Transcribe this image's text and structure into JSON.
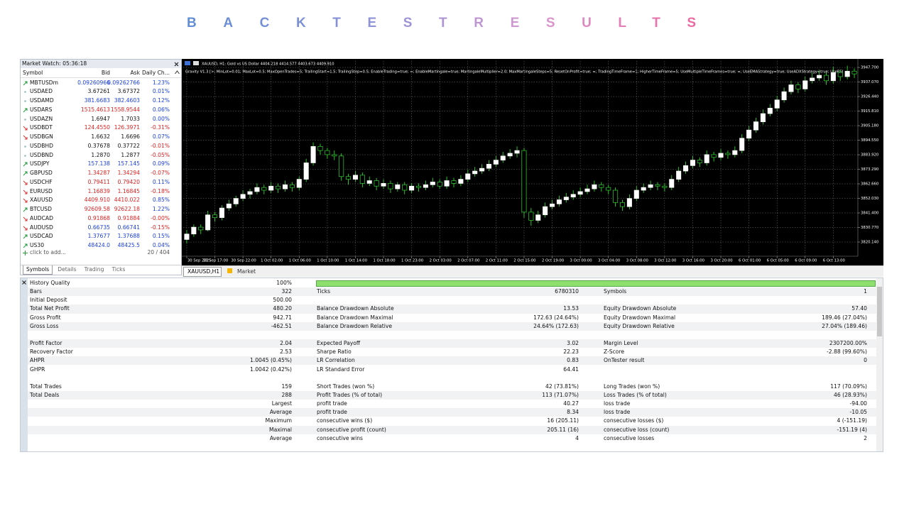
{
  "title": "BACKTESTRESULTS",
  "market_watch": {
    "header": "Market Watch: 05:36:18",
    "columns": [
      "Symbol",
      "Bid",
      "Ask",
      "Daily Ch..."
    ],
    "rows": [
      {
        "symbol": "MBTUSDm",
        "bid": "0.09260966",
        "ask": "0.09262766",
        "change": "1.23%",
        "trend": "up",
        "tick": "up"
      },
      {
        "symbol": "USDAED",
        "bid": "3.67261",
        "ask": "3.67372",
        "change": "0.01%",
        "trend": "flat",
        "tick": "none"
      },
      {
        "symbol": "USDAMD",
        "bid": "381.6683",
        "ask": "382.4603",
        "change": "0.12%",
        "trend": "flat",
        "tick": "up"
      },
      {
        "symbol": "USDARS",
        "bid": "1515.4613",
        "ask": "1558.9544",
        "change": "0.06%",
        "trend": "up",
        "tick": "down"
      },
      {
        "symbol": "USDAZN",
        "bid": "1.6947",
        "ask": "1.7033",
        "change": "0.00%",
        "trend": "flat",
        "tick": "none"
      },
      {
        "symbol": "USDBDT",
        "bid": "124.4550",
        "ask": "126.3971",
        "change": "-0.31%",
        "trend": "down",
        "tick": "down"
      },
      {
        "symbol": "USDBGN",
        "bid": "1.6632",
        "ask": "1.6696",
        "change": "0.07%",
        "trend": "down",
        "tick": "none"
      },
      {
        "symbol": "USDBHD",
        "bid": "0.37678",
        "ask": "0.37722",
        "change": "-0.01%",
        "trend": "flat",
        "tick": "none"
      },
      {
        "symbol": "USDBND",
        "bid": "1.2870",
        "ask": "1.2877",
        "change": "-0.05%",
        "trend": "flat",
        "tick": "none"
      },
      {
        "symbol": "USDJPY",
        "bid": "157.138",
        "ask": "157.145",
        "change": "0.09%",
        "trend": "up",
        "tick": "up"
      },
      {
        "symbol": "GBPUSD",
        "bid": "1.34287",
        "ask": "1.34294",
        "change": "-0.07%",
        "trend": "up",
        "tick": "down"
      },
      {
        "symbol": "USDCHF",
        "bid": "0.79411",
        "ask": "0.79420",
        "change": "0.11%",
        "trend": "down",
        "tick": "down"
      },
      {
        "symbol": "EURUSD",
        "bid": "1.16839",
        "ask": "1.16845",
        "change": "-0.18%",
        "trend": "down",
        "tick": "down"
      },
      {
        "symbol": "XAUUSD",
        "bid": "4409.910",
        "ask": "4410.022",
        "change": "0.85%",
        "trend": "down",
        "tick": "down"
      },
      {
        "symbol": "BTCUSD",
        "bid": "92609.58",
        "ask": "92622.18",
        "change": "1.22%",
        "trend": "up",
        "tick": "down"
      },
      {
        "symbol": "AUDCAD",
        "bid": "0.91868",
        "ask": "0.91884",
        "change": "-0.00%",
        "trend": "down",
        "tick": "down"
      },
      {
        "symbol": "AUDUSD",
        "bid": "0.66735",
        "ask": "0.66741",
        "change": "-0.15%",
        "trend": "down",
        "tick": "up"
      },
      {
        "symbol": "USDCAD",
        "bid": "1.37677",
        "ask": "1.37688",
        "change": "0.15%",
        "trend": "up",
        "tick": "up"
      },
      {
        "symbol": "US30",
        "bid": "48424.0",
        "ask": "48425.5",
        "change": "0.04%",
        "trend": "up",
        "tick": "up"
      }
    ],
    "add_symbol": "click to add...",
    "count": "20 / 404",
    "tabs": [
      "Symbols",
      "Details",
      "Trading",
      "Ticks"
    ]
  },
  "chart_data": {
    "type": "candlestick",
    "title": "XAUUSD, H1:  Gold vs US Dollar  4404.218 4414.577 4403.673 4409.910",
    "subtitle": "Gravity V1.3 [>; MinLot=0.01; MaxLot=0.5; MaxOpenTrades=5; TrailingStart=1.5; TrailingStep=0.5; EnableTrading=true; =; EnableMartingale=true; MartingaleMultiplier=2.0; MaxMartingaleSteps=5; ResetOnProfit=true; =; TradingTimeFrame=1; HigherTimeFrame=5; UseMultipleTimeFrames=true; =; UseEMAStrategy=true; UseADXStrategy=true; UseRSI",
    "categories": [
      "30 Sep 2025",
      null,
      null,
      null,
      "30 Sep 17:00",
      null,
      null,
      null,
      "30 Sep 22:00",
      null,
      null,
      null,
      "1 Oct 02:00",
      null,
      null,
      null,
      "1 Oct 06:00",
      null,
      null,
      null,
      "1 Oct 10:00",
      null,
      null,
      null,
      "1 Oct 14:00",
      null,
      null,
      null,
      "1 Oct 18:00",
      null,
      null,
      null,
      "1 Oct 23:00",
      null,
      null,
      null,
      "2 Oct 03:00",
      null,
      null,
      null,
      "2 Oct 07:00",
      null,
      null,
      null,
      "2 Oct 11:00",
      null,
      null,
      null,
      "2 Oct 15:00",
      null,
      null,
      null,
      "2 Oct 19:00",
      null,
      null,
      null,
      "3 Oct 00:00",
      null,
      null,
      null,
      "3 Oct 04:00",
      null,
      null,
      null,
      "3 Oct 08:00",
      null,
      null,
      null,
      "3 Oct 12:00",
      null,
      null,
      null,
      "3 Oct 16:00",
      null,
      null,
      null,
      "3 Oct 20:00",
      null,
      null,
      null,
      "6 Oct 01:00",
      null,
      null,
      null,
      "6 Oct 05:00",
      null,
      null,
      null,
      "6 Oct 09:00",
      null,
      null,
      null,
      "6 Oct 13:00",
      null,
      null,
      null
    ],
    "ohlc": [
      [
        3822,
        3829,
        3819,
        3826
      ],
      [
        3826,
        3833,
        3824,
        3831
      ],
      [
        3831,
        3833,
        3826,
        3829
      ],
      [
        3829,
        3843,
        3828,
        3840
      ],
      [
        3840,
        3842,
        3835,
        3838
      ],
      [
        3838,
        3847,
        3836,
        3845
      ],
      [
        3845,
        3851,
        3843,
        3848
      ],
      [
        3848,
        3854,
        3846,
        3852
      ],
      [
        3852,
        3858,
        3850,
        3855
      ],
      [
        3855,
        3859,
        3852,
        3857
      ],
      [
        3857,
        3863,
        3855,
        3860
      ],
      [
        3860,
        3862,
        3855,
        3858
      ],
      [
        3858,
        3864,
        3856,
        3861
      ],
      [
        3861,
        3863,
        3856,
        3859
      ],
      [
        3859,
        3865,
        3857,
        3862
      ],
      [
        3862,
        3864,
        3857,
        3860
      ],
      [
        3860,
        3868,
        3858,
        3866
      ],
      [
        3866,
        3881,
        3864,
        3878
      ],
      [
        3878,
        3893,
        3876,
        3890
      ],
      [
        3890,
        3892,
        3884,
        3887
      ],
      [
        3887,
        3889,
        3881,
        3884
      ],
      [
        3884,
        3887,
        3880,
        3883
      ],
      [
        3883,
        3885,
        3865,
        3868
      ],
      [
        3868,
        3870,
        3862,
        3866
      ],
      [
        3866,
        3872,
        3864,
        3869
      ],
      [
        3869,
        3871,
        3860,
        3863
      ],
      [
        3863,
        3868,
        3861,
        3865
      ],
      [
        3865,
        3867,
        3858,
        3861
      ],
      [
        3861,
        3866,
        3859,
        3863
      ],
      [
        3863,
        3865,
        3856,
        3859
      ],
      [
        3859,
        3864,
        3857,
        3862
      ],
      [
        3862,
        3864,
        3855,
        3858
      ],
      [
        3858,
        3863,
        3856,
        3861
      ],
      [
        3861,
        3863,
        3857,
        3860
      ],
      [
        3860,
        3865,
        3858,
        3862
      ],
      [
        3862,
        3867,
        3860,
        3864
      ],
      [
        3864,
        3866,
        3859,
        3861
      ],
      [
        3861,
        3868,
        3859,
        3865
      ],
      [
        3865,
        3867,
        3860,
        3863
      ],
      [
        3863,
        3869,
        3861,
        3866
      ],
      [
        3866,
        3873,
        3864,
        3870
      ],
      [
        3870,
        3875,
        3868,
        3872
      ],
      [
        3872,
        3877,
        3870,
        3874
      ],
      [
        3874,
        3880,
        3872,
        3877
      ],
      [
        3877,
        3883,
        3875,
        3880
      ],
      [
        3880,
        3886,
        3878,
        3883
      ],
      [
        3883,
        3888,
        3881,
        3885
      ],
      [
        3885,
        3890,
        3882,
        3887
      ],
      [
        3887,
        3889,
        3838,
        3842
      ],
      [
        3842,
        3845,
        3832,
        3836
      ],
      [
        3836,
        3843,
        3834,
        3840
      ],
      [
        3840,
        3849,
        3838,
        3846
      ],
      [
        3846,
        3851,
        3844,
        3848
      ],
      [
        3848,
        3854,
        3846,
        3851
      ],
      [
        3851,
        3856,
        3849,
        3853
      ],
      [
        3853,
        3858,
        3851,
        3855
      ],
      [
        3855,
        3860,
        3853,
        3857
      ],
      [
        3857,
        3862,
        3855,
        3859
      ],
      [
        3859,
        3865,
        3857,
        3862
      ],
      [
        3862,
        3864,
        3857,
        3860
      ],
      [
        3860,
        3862,
        3855,
        3858
      ],
      [
        3858,
        3860,
        3846,
        3849
      ],
      [
        3849,
        3851,
        3843,
        3846
      ],
      [
        3846,
        3855,
        3844,
        3852
      ],
      [
        3852,
        3861,
        3850,
        3858
      ],
      [
        3858,
        3863,
        3856,
        3860
      ],
      [
        3860,
        3865,
        3858,
        3862
      ],
      [
        3862,
        3864,
        3858,
        3861
      ],
      [
        3861,
        3863,
        3857,
        3860
      ],
      [
        3860,
        3869,
        3858,
        3866
      ],
      [
        3866,
        3875,
        3864,
        3872
      ],
      [
        3872,
        3879,
        3870,
        3876
      ],
      [
        3876,
        3883,
        3874,
        3880
      ],
      [
        3880,
        3882,
        3875,
        3878
      ],
      [
        3878,
        3887,
        3876,
        3884
      ],
      [
        3884,
        3886,
        3879,
        3882
      ],
      [
        3882,
        3888,
        3880,
        3885
      ],
      [
        3885,
        3887,
        3881,
        3884
      ],
      [
        3884,
        3890,
        3882,
        3887
      ],
      [
        3887,
        3899,
        3885,
        3896
      ],
      [
        3896,
        3905,
        3894,
        3902
      ],
      [
        3902,
        3911,
        3900,
        3908
      ],
      [
        3908,
        3917,
        3906,
        3914
      ],
      [
        3914,
        3921,
        3912,
        3918
      ],
      [
        3918,
        3927,
        3916,
        3924
      ],
      [
        3924,
        3933,
        3922,
        3930
      ],
      [
        3930,
        3938,
        3928,
        3935
      ],
      [
        3935,
        3937,
        3929,
        3932
      ],
      [
        3932,
        3941,
        3930,
        3938
      ],
      [
        3938,
        3944,
        3936,
        3940
      ],
      [
        3940,
        3946,
        3938,
        3942
      ],
      [
        3942,
        3944,
        3935,
        3938
      ],
      [
        3938,
        3948,
        3936,
        3944
      ],
      [
        3944,
        3946,
        3938,
        3941
      ],
      [
        3941,
        3949,
        3939,
        3945
      ],
      [
        3945,
        3947,
        3940,
        3943
      ]
    ],
    "up_color": "#ffffff",
    "down_color": "#000000",
    "wick_color": "#2fd32f",
    "ylim": [
      3810.3,
      3952.4
    ],
    "yticks": [
      {
        "value": 3947.7,
        "label": "3947.700"
      },
      {
        "value": 3937.07,
        "label": "3937.070"
      },
      {
        "value": 3926.44,
        "label": "3926.440"
      },
      {
        "value": 3915.81,
        "label": "3915.810"
      },
      {
        "value": 3905.18,
        "label": "3905.180"
      },
      {
        "value": 3894.55,
        "label": "3894.550"
      },
      {
        "value": 3883.92,
        "label": "3883.920"
      },
      {
        "value": 3873.29,
        "label": "3873.290"
      },
      {
        "value": 3862.66,
        "label": "3862.660"
      },
      {
        "value": 3852.03,
        "label": "3852.030"
      },
      {
        "value": 3841.4,
        "label": "3841.400"
      },
      {
        "value": 3830.77,
        "label": "3830.770"
      },
      {
        "value": 3820.14,
        "label": "3820.140"
      }
    ],
    "grid": true
  },
  "chart_tabs": [
    "XAUUSD,H1",
    "Market"
  ],
  "report": {
    "sections": [
      [
        [
          "History Quality",
          "100%",
          null,
          null,
          null,
          null
        ],
        [
          "Bars",
          "322",
          "Ticks",
          "6780310",
          "Symbols",
          "1"
        ],
        [
          "Initial Deposit",
          "500.00",
          null,
          null,
          null,
          null
        ],
        [
          "Total Net Profit",
          "480.20",
          "Balance Drawdown Absolute",
          "13.53",
          "Equity Drawdown Absolute",
          "57.40"
        ],
        [
          "Gross Profit",
          "942.71",
          "Balance Drawdown Maximal",
          "172.63 (24.64%)",
          "Equity Drawdown Maximal",
          "189.46 (27.04%)"
        ],
        [
          "Gross Loss",
          "-462.51",
          "Balance Drawdown Relative",
          "24.64% (172.63)",
          "Equity Drawdown Relative",
          "27.04% (189.46)"
        ]
      ],
      [
        [
          "Profit Factor",
          "2.04",
          "Expected Payoff",
          "3.02",
          "Margin Level",
          "2307200.00%"
        ],
        [
          "Recovery Factor",
          "2.53",
          "Sharpe Ratio",
          "22.23",
          "Z-Score",
          "-2.88 (99.60%)"
        ],
        [
          "AHPR",
          "1.0045 (0.45%)",
          "LR Correlation",
          "0.83",
          "OnTester result",
          "0"
        ],
        [
          "GHPR",
          "1.0042 (0.42%)",
          "LR Standard Error",
          "64.41",
          null,
          null
        ]
      ],
      [
        [
          "Total Trades",
          "159",
          "Short Trades (won %)",
          "42 (73.81%)",
          "Long Trades (won %)",
          "117 (70.09%)"
        ],
        [
          "Total Deals",
          "288",
          "Profit Trades (% of total)",
          "113 (71.07%)",
          "Loss Trades (% of total)",
          "46 (28.93%)"
        ],
        [
          null,
          "Largest",
          "profit trade",
          "40.27",
          "loss trade",
          "-94.00"
        ],
        [
          null,
          "Average",
          "profit trade",
          "8.34",
          "loss trade",
          "-10.05"
        ],
        [
          null,
          "Maximum",
          "consecutive wins ($)",
          "16 (205.11)",
          "consecutive losses ($)",
          "4 (-151.19)"
        ],
        [
          null,
          "Maximal",
          "consecutive profit (count)",
          "205.11 (16)",
          "consecutive loss (count)",
          "-151.19 (4)"
        ],
        [
          null,
          "Average",
          "consecutive wins",
          "4",
          "consecutive losses",
          "2"
        ]
      ]
    ]
  }
}
